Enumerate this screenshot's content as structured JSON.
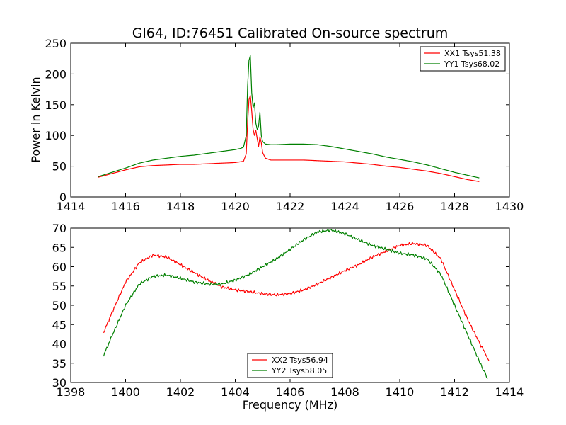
{
  "chart_data": [
    {
      "type": "line",
      "title": "Gl64, ID:76451 Calibrated On-source spectrum",
      "xlabel": "",
      "ylabel": "Power in Kelvin",
      "xlim": [
        1414,
        1430
      ],
      "ylim": [
        0,
        250
      ],
      "xticks": [
        1414,
        1416,
        1418,
        1420,
        1422,
        1424,
        1426,
        1428,
        1430
      ],
      "yticks": [
        0,
        50,
        100,
        150,
        200,
        250
      ],
      "legend_position": "top-right",
      "series": [
        {
          "name": "XX1 Tsys51.38",
          "color": "#ff0000",
          "x": [
            1415.0,
            1415.5,
            1416.0,
            1416.5,
            1417.0,
            1417.5,
            1418.0,
            1418.5,
            1419.0,
            1419.5,
            1420.0,
            1420.3,
            1420.4,
            1420.45,
            1420.5,
            1420.55,
            1420.6,
            1420.65,
            1420.7,
            1420.75,
            1420.8,
            1420.85,
            1420.9,
            1420.95,
            1421.0,
            1421.1,
            1421.3,
            1421.5,
            1422.0,
            1422.5,
            1423.0,
            1423.5,
            1424.0,
            1424.5,
            1425.0,
            1425.5,
            1426.0,
            1426.5,
            1427.0,
            1427.5,
            1428.0,
            1428.5,
            1428.9
          ],
          "y": [
            32,
            38,
            44,
            49,
            51,
            52,
            53,
            53,
            54,
            55,
            56,
            58,
            70,
            120,
            158,
            165,
            140,
            110,
            100,
            108,
            95,
            82,
            98,
            88,
            72,
            63,
            60,
            60,
            60,
            60,
            59,
            58,
            57,
            55,
            53,
            50,
            48,
            45,
            42,
            38,
            33,
            28,
            25
          ]
        },
        {
          "name": "YY1 Tsys68.02",
          "color": "#008000",
          "x": [
            1415.0,
            1415.5,
            1416.0,
            1416.5,
            1417.0,
            1417.5,
            1418.0,
            1418.5,
            1419.0,
            1419.5,
            1420.0,
            1420.2,
            1420.3,
            1420.4,
            1420.45,
            1420.5,
            1420.55,
            1420.6,
            1420.65,
            1420.7,
            1420.75,
            1420.8,
            1420.85,
            1420.9,
            1420.95,
            1421.0,
            1421.1,
            1421.3,
            1421.5,
            1422.0,
            1422.5,
            1423.0,
            1423.5,
            1424.0,
            1424.5,
            1425.0,
            1425.5,
            1426.0,
            1426.5,
            1427.0,
            1427.5,
            1428.0,
            1428.5,
            1428.9
          ],
          "y": [
            33,
            40,
            47,
            55,
            60,
            63,
            66,
            68,
            71,
            74,
            77,
            79,
            81,
            100,
            180,
            222,
            230,
            170,
            145,
            153,
            120,
            110,
            115,
            138,
            100,
            90,
            86,
            85,
            85,
            86,
            86,
            85,
            82,
            78,
            74,
            70,
            65,
            61,
            57,
            52,
            46,
            40,
            35,
            31
          ]
        }
      ]
    },
    {
      "type": "line",
      "title": "",
      "xlabel": "Frequency (MHz)",
      "ylabel": "",
      "xlim": [
        1398,
        1414
      ],
      "ylim": [
        30,
        70
      ],
      "xticks": [
        1398,
        1400,
        1402,
        1404,
        1406,
        1408,
        1410,
        1412,
        1414
      ],
      "yticks": [
        30,
        35,
        40,
        45,
        50,
        55,
        60,
        65,
        70
      ],
      "legend_position": "bottom-center",
      "series": [
        {
          "name": "XX2 Tsys56.94",
          "color": "#ff0000",
          "x": [
            1399.2,
            1399.5,
            1400.0,
            1400.5,
            1401.0,
            1401.5,
            1402.0,
            1402.5,
            1403.0,
            1403.5,
            1404.0,
            1404.5,
            1405.0,
            1405.5,
            1406.0,
            1406.5,
            1407.0,
            1407.5,
            1408.0,
            1408.5,
            1409.0,
            1409.5,
            1410.0,
            1410.5,
            1411.0,
            1411.5,
            1412.0,
            1412.5,
            1413.0,
            1413.25
          ],
          "y": [
            43,
            48,
            56,
            61,
            63,
            62.5,
            60.5,
            58.5,
            56.5,
            54.8,
            54,
            53.5,
            53,
            52.7,
            53,
            54,
            55.5,
            57.2,
            59,
            60.5,
            62.5,
            64,
            65.5,
            66,
            65.5,
            62,
            54,
            46,
            39,
            35.7
          ]
        },
        {
          "name": "YY2 Tsys58.05",
          "color": "#008000",
          "x": [
            1399.2,
            1399.5,
            1400.0,
            1400.5,
            1401.0,
            1401.5,
            1402.0,
            1402.5,
            1403.0,
            1403.5,
            1404.0,
            1404.5,
            1405.0,
            1405.5,
            1406.0,
            1406.5,
            1407.0,
            1407.5,
            1408.0,
            1408.5,
            1409.0,
            1409.5,
            1410.0,
            1410.5,
            1411.0,
            1411.5,
            1412.0,
            1412.5,
            1413.0,
            1413.2
          ],
          "y": [
            37,
            42,
            50,
            55.5,
            57.5,
            57.8,
            57,
            56,
            55.5,
            55.5,
            56.5,
            58,
            60,
            62,
            64.5,
            67,
            69,
            69.5,
            68.5,
            67,
            65.5,
            64.5,
            63.5,
            63,
            62,
            58,
            50,
            42,
            34,
            31
          ]
        }
      ]
    }
  ]
}
